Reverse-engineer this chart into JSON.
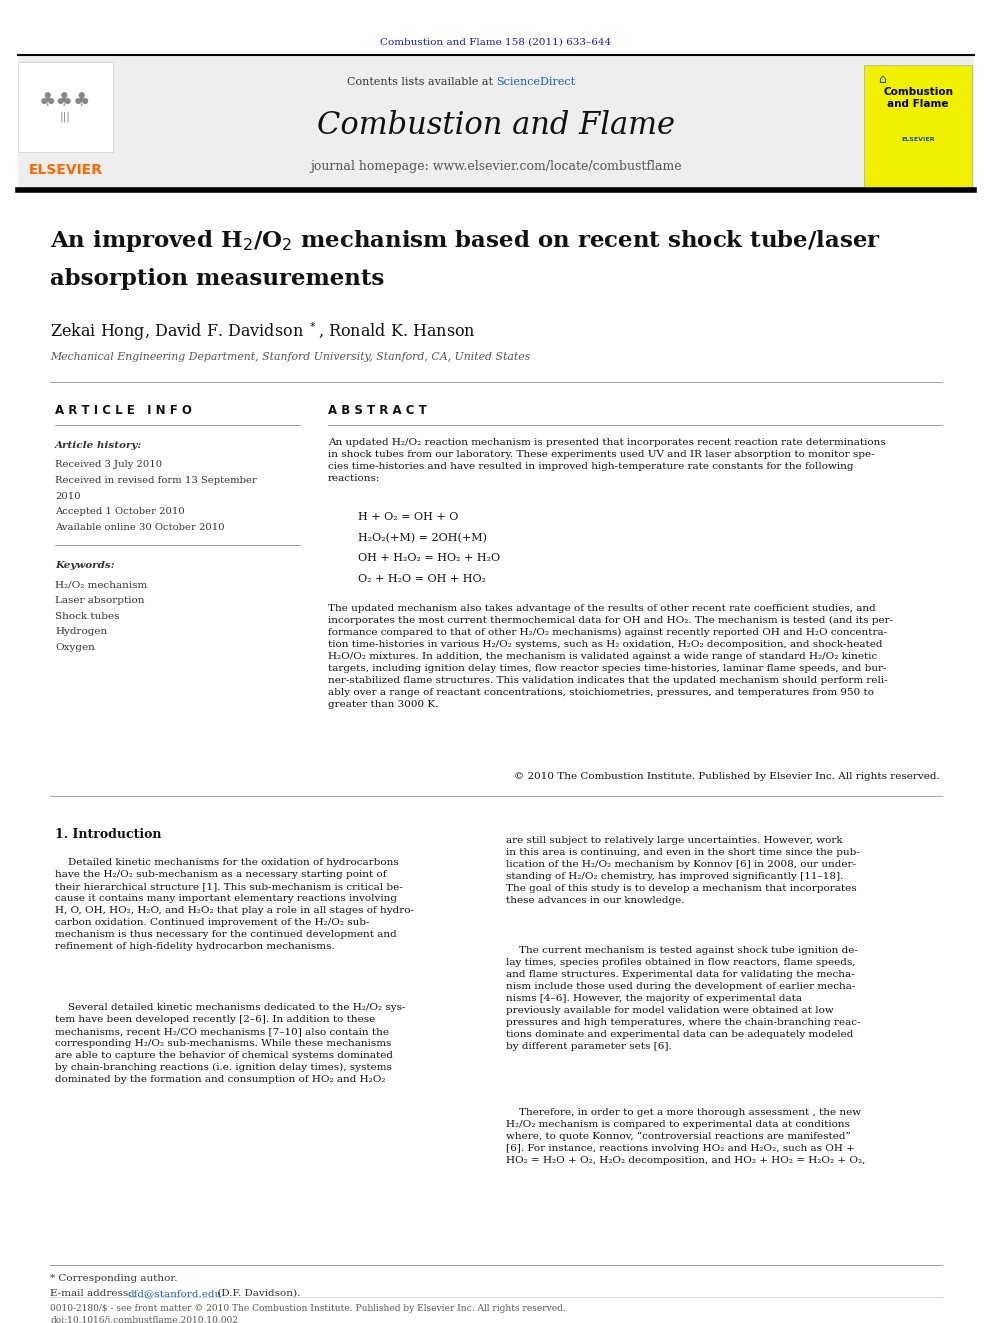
{
  "page_width": 9.92,
  "page_height": 13.23,
  "bg_color": "#ffffff",
  "journal_citation_color": "#1a1aaa",
  "journal_citation": "Combustion and Flame 158 (2011) 633–644",
  "header_bg": "#eeeeee",
  "sciencedirect_color": "#1a5faa",
  "journal_title": "Combustion and Flame",
  "journal_homepage": "journal homepage: www.elsevier.com/locate/combustflame",
  "elsevier_color": "#ff6600",
  "affiliation": "Mechanical Engineering Department, Stanford University, Stanford, CA, United States",
  "article_info_title": "A R T I C L E   I N F O",
  "abstract_title": "A B S T R A C T",
  "article_history_title": "Article history:",
  "received_1": "Received 3 July 2010",
  "received_revised_1": "Received in revised form 13 September",
  "received_revised_2": "2010",
  "accepted": "Accepted 1 October 2010",
  "available": "Available online 30 October 2010",
  "keywords_title": "Keywords:",
  "keywords": [
    "H₂/O₂ mechanism",
    "Laser absorption",
    "Shock tubes",
    "Hydrogen",
    "Oxygen"
  ],
  "reactions": [
    "H + O₂ = OH + O",
    "H₂O₂(+M) = 2OH(+M)",
    "OH + H₂O₂ = HO₂ + H₂O",
    "O₂ + H₂O = OH + HO₂"
  ],
  "copyright": "© 2010 The Combustion Institute. Published by Elsevier Inc. All rights reserved.",
  "section1_title": "1. Introduction",
  "footnote_star": "* Corresponding author.",
  "footnote_email_label": "E-mail address: ",
  "footnote_email_link": "dfd@stanford.edu",
  "footnote_email_suffix": " (D.F. Davidson).",
  "footer_text": "0010-2180/$ - see front matter © 2010 The Combustion Institute. Published by Elsevier Inc. All rights reserved.",
  "doi_text": "doi:10.1016/j.combustflame.2010.10.002"
}
